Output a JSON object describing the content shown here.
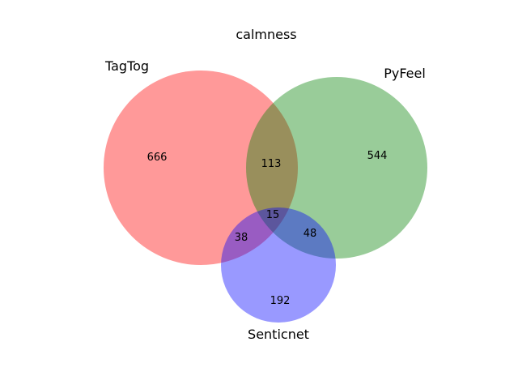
{
  "title": "calmness",
  "sets": [
    {
      "id": "A",
      "name": "TagTog",
      "color": "#ff0000"
    },
    {
      "id": "B",
      "name": "PyFeel",
      "color": "#008000"
    },
    {
      "id": "C",
      "name": "Senticnet",
      "color": "#0000ff"
    }
  ],
  "regions": {
    "A_only": "666",
    "B_only": "544",
    "C_only": "192",
    "AB_only": "113",
    "AC_only": "38",
    "BC_only": "48",
    "ABC": "15"
  },
  "chart_data": {
    "type": "venn3",
    "title": "calmness",
    "set_labels": [
      "TagTog",
      "PyFeel",
      "Senticnet"
    ],
    "subsets": {
      "100": 666,
      "010": 544,
      "001": 192,
      "110": 113,
      "101": 38,
      "011": 48,
      "111": 15
    },
    "alpha": 0.4
  }
}
